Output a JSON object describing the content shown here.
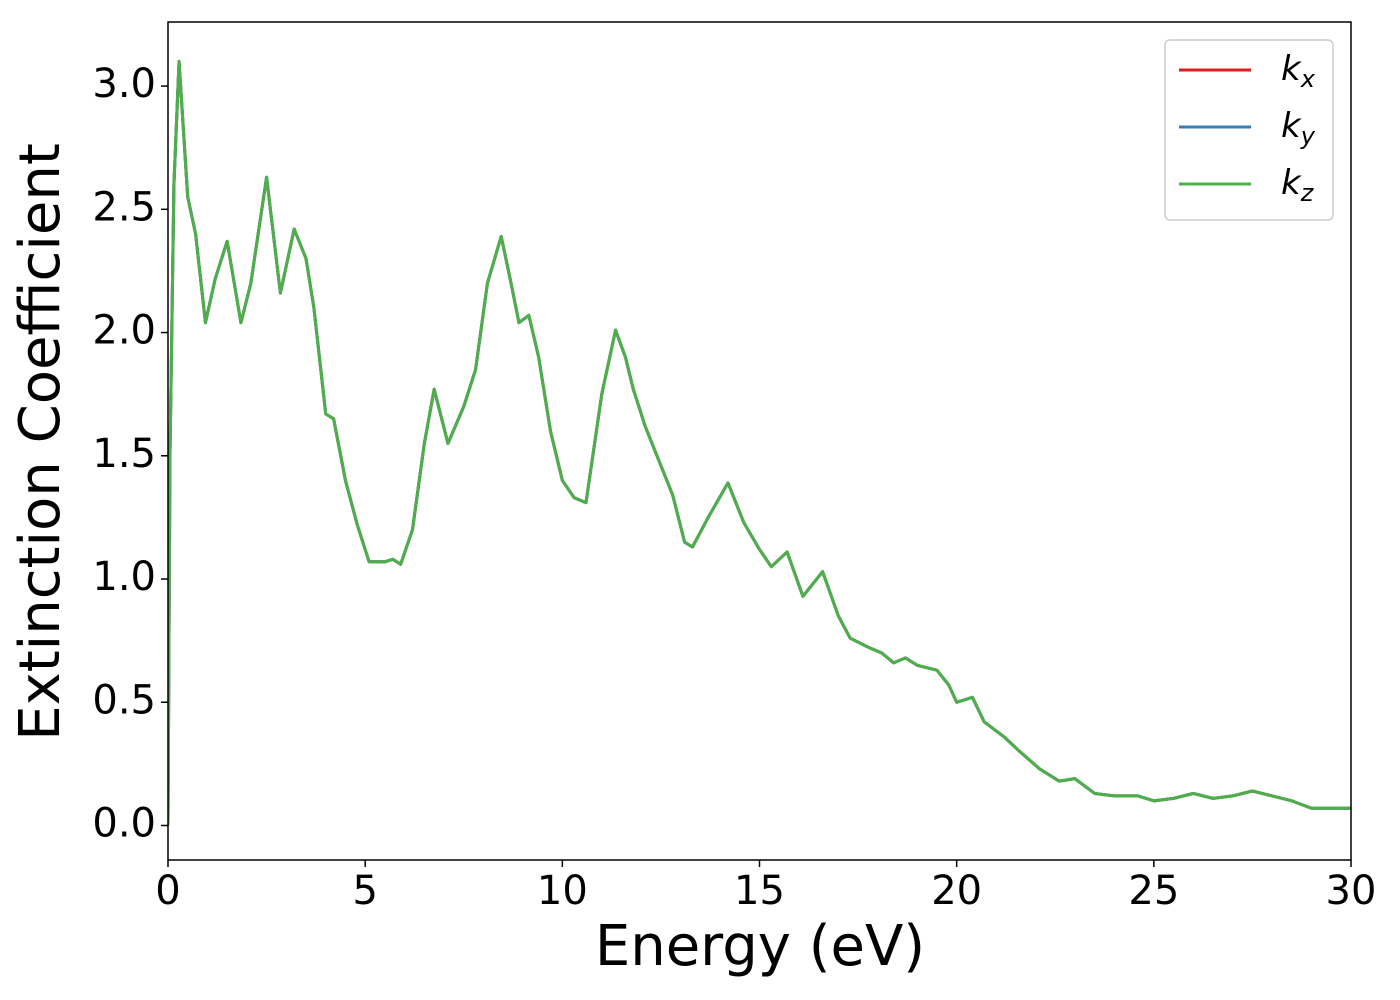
{
  "chart_data": {
    "type": "line",
    "xlabel": "Energy (eV)",
    "ylabel": "Extinction Coefficient",
    "x": [
      0,
      0.05,
      0.15,
      0.28,
      0.4,
      0.5,
      0.7,
      0.95,
      1.2,
      1.5,
      1.85,
      2.1,
      2.5,
      2.85,
      3.2,
      3.5,
      3.7,
      4.0,
      4.2,
      4.5,
      4.8,
      5.1,
      5.5,
      5.7,
      5.9,
      6.2,
      6.5,
      6.75,
      7.1,
      7.5,
      7.8,
      8.1,
      8.45,
      8.7,
      8.9,
      9.15,
      9.4,
      9.7,
      10.0,
      10.3,
      10.6,
      11.0,
      11.35,
      11.6,
      11.8,
      12.1,
      12.4,
      12.8,
      13.1,
      13.3,
      13.7,
      14.2,
      14.6,
      15.0,
      15.3,
      15.7,
      16.1,
      16.6,
      17.0,
      17.3,
      17.8,
      18.1,
      18.4,
      18.7,
      19.0,
      19.5,
      19.8,
      20.0,
      20.4,
      20.7,
      21.2,
      21.6,
      22.1,
      22.6,
      23.0,
      23.5,
      24.0,
      24.6,
      25.0,
      25.5,
      26.0,
      26.5,
      27.0,
      27.5,
      28.0,
      28.5,
      29.0,
      30.0
    ],
    "series": [
      {
        "name": "kx",
        "color": "#e41a1c",
        "values": [
          0,
          1.5,
          2.6,
          3.1,
          2.8,
          2.55,
          2.4,
          2.04,
          2.22,
          2.37,
          2.04,
          2.2,
          2.63,
          2.16,
          2.42,
          2.3,
          2.1,
          1.67,
          1.65,
          1.4,
          1.22,
          1.07,
          1.07,
          1.08,
          1.06,
          1.2,
          1.55,
          1.77,
          1.55,
          1.7,
          1.85,
          2.2,
          2.39,
          2.2,
          2.04,
          2.07,
          1.9,
          1.6,
          1.4,
          1.33,
          1.31,
          1.75,
          2.01,
          1.9,
          1.77,
          1.62,
          1.5,
          1.34,
          1.15,
          1.13,
          1.25,
          1.39,
          1.23,
          1.12,
          1.05,
          1.11,
          0.93,
          1.03,
          0.85,
          0.76,
          0.72,
          0.7,
          0.66,
          0.68,
          0.65,
          0.63,
          0.57,
          0.5,
          0.52,
          0.42,
          0.36,
          0.3,
          0.23,
          0.18,
          0.19,
          0.13,
          0.12,
          0.12,
          0.1,
          0.11,
          0.13,
          0.11,
          0.12,
          0.14,
          0.12,
          0.1,
          0.07,
          0.07
        ]
      },
      {
        "name": "ky",
        "color": "#377eb8",
        "values": [
          0,
          1.5,
          2.6,
          3.1,
          2.8,
          2.55,
          2.4,
          2.04,
          2.22,
          2.37,
          2.04,
          2.2,
          2.63,
          2.16,
          2.42,
          2.3,
          2.1,
          1.67,
          1.65,
          1.4,
          1.22,
          1.07,
          1.07,
          1.08,
          1.06,
          1.2,
          1.55,
          1.77,
          1.55,
          1.7,
          1.85,
          2.2,
          2.39,
          2.2,
          2.04,
          2.07,
          1.9,
          1.6,
          1.4,
          1.33,
          1.31,
          1.75,
          2.01,
          1.9,
          1.77,
          1.62,
          1.5,
          1.34,
          1.15,
          1.13,
          1.25,
          1.39,
          1.23,
          1.12,
          1.05,
          1.11,
          0.93,
          1.03,
          0.85,
          0.76,
          0.72,
          0.7,
          0.66,
          0.68,
          0.65,
          0.63,
          0.57,
          0.5,
          0.52,
          0.42,
          0.36,
          0.3,
          0.23,
          0.18,
          0.19,
          0.13,
          0.12,
          0.12,
          0.1,
          0.11,
          0.13,
          0.11,
          0.12,
          0.14,
          0.12,
          0.1,
          0.07,
          0.07
        ]
      },
      {
        "name": "kz",
        "color": "#4daf4a",
        "values": [
          0,
          1.5,
          2.6,
          3.1,
          2.8,
          2.55,
          2.4,
          2.04,
          2.22,
          2.37,
          2.04,
          2.2,
          2.63,
          2.16,
          2.42,
          2.3,
          2.1,
          1.67,
          1.65,
          1.4,
          1.22,
          1.07,
          1.07,
          1.08,
          1.06,
          1.2,
          1.55,
          1.77,
          1.55,
          1.7,
          1.85,
          2.2,
          2.39,
          2.2,
          2.04,
          2.07,
          1.9,
          1.6,
          1.4,
          1.33,
          1.31,
          1.75,
          2.01,
          1.9,
          1.77,
          1.62,
          1.5,
          1.34,
          1.15,
          1.13,
          1.25,
          1.39,
          1.23,
          1.12,
          1.05,
          1.11,
          0.93,
          1.03,
          0.85,
          0.76,
          0.72,
          0.7,
          0.66,
          0.68,
          0.65,
          0.63,
          0.57,
          0.5,
          0.52,
          0.42,
          0.36,
          0.3,
          0.23,
          0.18,
          0.19,
          0.13,
          0.12,
          0.12,
          0.1,
          0.11,
          0.13,
          0.11,
          0.12,
          0.14,
          0.12,
          0.1,
          0.07,
          0.07
        ]
      }
    ],
    "xlim": [
      0,
      30
    ],
    "xticks": [
      0,
      5,
      10,
      15,
      20,
      25,
      30
    ],
    "ylim": [
      -0.14,
      3.26
    ],
    "yticks": [
      {
        "value": 0,
        "label": "0.0"
      },
      {
        "value": 0.5,
        "label": "0.5"
      },
      {
        "value": 1,
        "label": "1.0"
      },
      {
        "value": 1.5,
        "label": "1.5"
      },
      {
        "value": 2,
        "label": "2.0"
      },
      {
        "value": 2.5,
        "label": "2.5"
      },
      {
        "value": 3,
        "label": "3.0"
      }
    ],
    "legend": "upper right",
    "grid": false
  }
}
